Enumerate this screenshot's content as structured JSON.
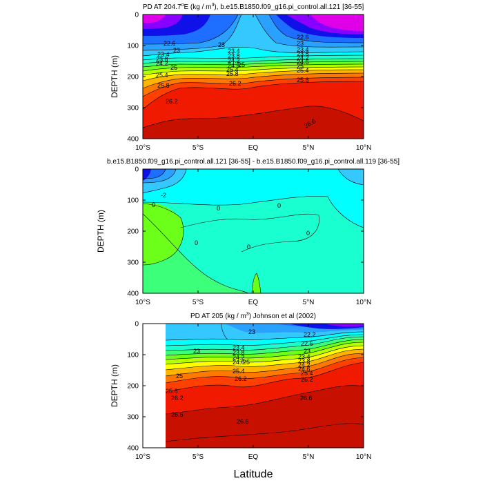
{
  "chart_data": [
    {
      "type": "contour",
      "title": "PD AT 204.7",
      "title_sup": "o",
      "title_mid": "E (kg / m",
      "title_sup2": "3",
      "title_end": "), b.e15.B1850.f09_g16.pi_control.all.121 [36-55]",
      "ylabel": "DEPTH (m)",
      "xlim": [
        -10,
        10
      ],
      "ylim": [
        0,
        400
      ],
      "y_inverted": true,
      "xticks": [
        -10,
        -5,
        0,
        5,
        10
      ],
      "xtick_labels": [
        "10°S",
        "5°S",
        "EQ",
        "5°N",
        "10°N"
      ],
      "yticks": [
        0,
        100,
        200,
        300,
        400
      ],
      "ytick_labels": [
        "0",
        "100",
        "200",
        "300",
        "400"
      ],
      "contour_labels": [
        "22.6",
        "23",
        "23.4",
        "23.8",
        "24.2",
        "24.6",
        "25",
        "25.4",
        "25.8",
        "26.2",
        "26.6"
      ]
    },
    {
      "type": "contour",
      "title": "b.e15.B1850.f09_g16.pi_control.all.121 [36-55] - b.e15.B1850.f09_g16.pi_control.all.119 [36-55]",
      "ylabel": "DEPTH (m)",
      "xlim": [
        -10,
        10
      ],
      "ylim": [
        0,
        400
      ],
      "y_inverted": true,
      "xticks": [
        -10,
        -5,
        0,
        5,
        10
      ],
      "xtick_labels": [
        "10°S",
        "5°S",
        "EQ",
        "5°N",
        "10°N"
      ],
      "yticks": [
        0,
        100,
        200,
        300,
        400
      ],
      "ytick_labels": [
        "0",
        "100",
        "200",
        "300",
        "400"
      ],
      "contour_labels": [
        "-2",
        "0"
      ]
    },
    {
      "type": "contour",
      "title": "PD AT 205 (kg / m",
      "title_sup2": "3",
      "title_end": ") Johnson et al (2002)",
      "ylabel": "DEPTH (m)",
      "xlabel": "Latitude",
      "xlim": [
        -10,
        10
      ],
      "ylim": [
        0,
        400
      ],
      "data_xlim": [
        -8,
        10
      ],
      "y_inverted": true,
      "xticks": [
        -10,
        -5,
        0,
        5,
        10
      ],
      "xtick_labels": [
        "10°S",
        "5°S",
        "EQ",
        "5°N",
        "10°N"
      ],
      "yticks": [
        0,
        100,
        200,
        300,
        400
      ],
      "ytick_labels": [
        "0",
        "100",
        "200",
        "300",
        "400"
      ],
      "contour_labels": [
        "22.2",
        "22.6",
        "23",
        "23.4",
        "23.8",
        "24.2",
        "24.6",
        "25",
        "25.4",
        "25.8",
        "26.2",
        "26.6"
      ]
    }
  ],
  "colors": {
    "magenta": "#e000e8",
    "violet": "#8a00ff",
    "dark_blue": "#1010e8",
    "blue": "#1e6fff",
    "sky": "#2aa0ff",
    "light_blue": "#35c8ff",
    "cyan": "#00ffff",
    "aqua": "#1affd0",
    "green_lt": "#3cff7a",
    "green": "#6cff1a",
    "yellow_green": "#b4ff00",
    "yellow": "#ffff00",
    "orange": "#ffb400",
    "orange_red": "#ff7800",
    "red_orange": "#ff4000",
    "red": "#f01a00",
    "dark_red": "#c81000"
  }
}
